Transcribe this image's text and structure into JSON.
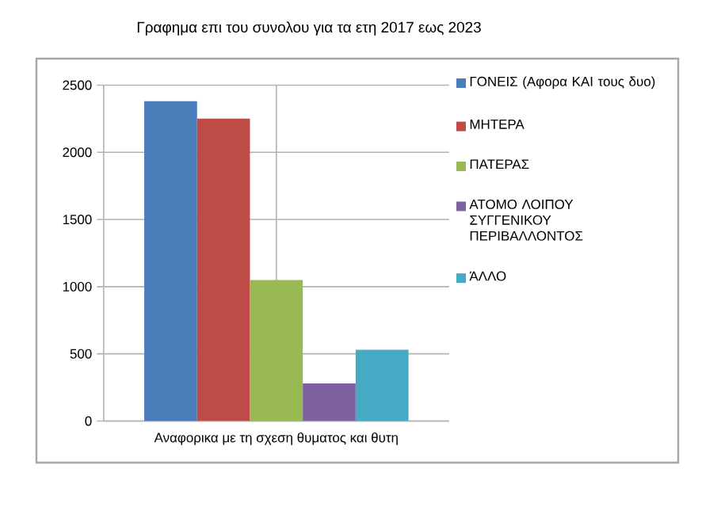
{
  "chart_data": {
    "type": "bar",
    "title": "Γραφημα επι του συνολου για τα ετη 2017 εως 2023",
    "categories": [
      "Αναφορικα με τη σχεση θυματος και θυτη"
    ],
    "series": [
      {
        "name": "ΓΟΝΕΙΣ (Αφορα ΚΑΙ τους δυο)",
        "color": "#4a7ebb",
        "values": [
          2380
        ]
      },
      {
        "name": "ΜΗΤΕΡΑ",
        "color": "#be4b48",
        "values": [
          2250
        ]
      },
      {
        "name": "ΠΑΤΕΡΑΣ",
        "color": "#98b954",
        "values": [
          1050
        ]
      },
      {
        "name": "ΑΤΟΜΟ ΛΟΙΠΟΥ ΣΥΓΓΕΝΙΚΟΥ ΠΕΡΙΒΑΛΛΟΝΤΟΣ",
        "color": "#7d60a0",
        "values": [
          280
        ]
      },
      {
        "name": "ΆΛΛΟ",
        "color": "#46aac5",
        "values": [
          530
        ]
      }
    ],
    "ylim": [
      0,
      2500
    ],
    "yticks": [
      0,
      500,
      1000,
      1500,
      2000,
      2500
    ],
    "grid": true,
    "legend": "right"
  }
}
